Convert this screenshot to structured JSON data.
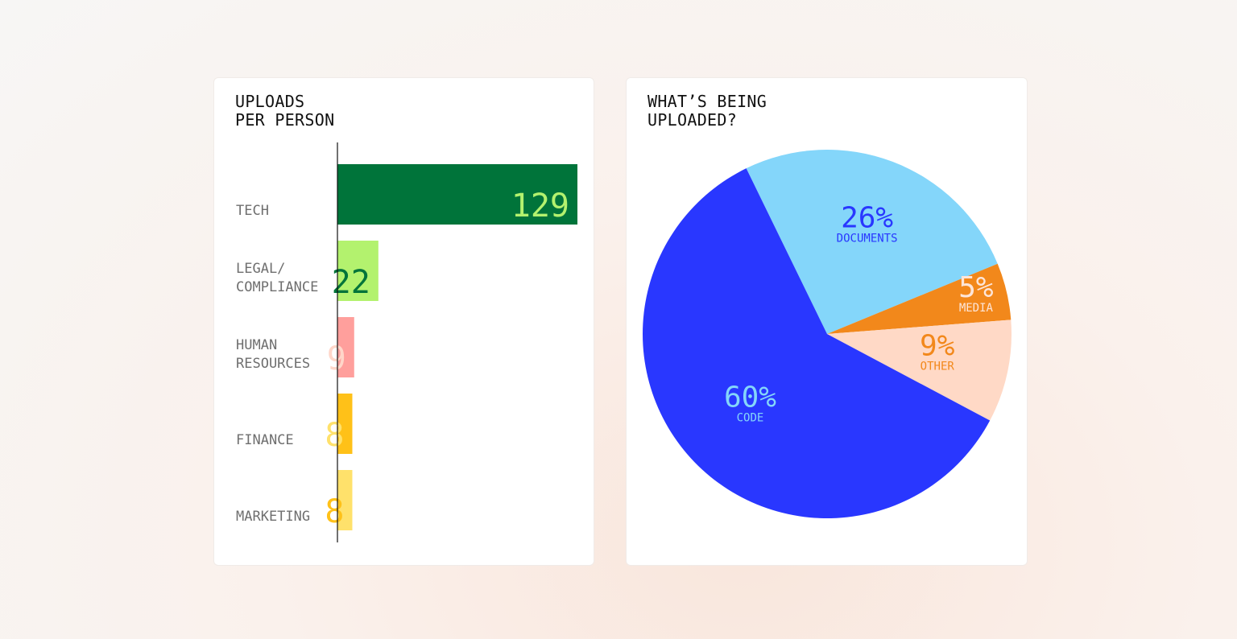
{
  "chart_data": [
    {
      "type": "bar",
      "orientation": "horizontal",
      "title_lines": [
        "UPLOADS",
        "PER PERSON"
      ],
      "categories": [
        {
          "id": "tech",
          "lines": [
            "TECH"
          ]
        },
        {
          "id": "legal-compliance",
          "lines": [
            "LEGAL/",
            "COMPLIANCE"
          ]
        },
        {
          "id": "human-resources",
          "lines": [
            "HUMAN",
            "RESOURCES"
          ]
        },
        {
          "id": "finance",
          "lines": [
            "FINANCE"
          ]
        },
        {
          "id": "marketing",
          "lines": [
            "MARKETING"
          ]
        }
      ],
      "values": [
        129,
        22,
        9,
        8,
        8
      ],
      "xlim": [
        0,
        129
      ],
      "colors": [
        "#00743a",
        "#b3f26e",
        "#ff9f9c",
        "#ffc118",
        "#ffe16b"
      ],
      "label_colors": [
        "#b3f26e",
        "#00743a",
        "#ffd6c9",
        "#ffe16b",
        "#ffc118"
      ],
      "xlabel": "",
      "ylabel": "",
      "grid": false,
      "legend": "none"
    },
    {
      "type": "pie",
      "title_lines": [
        "WHAT’S BEING",
        "UPLOADED?"
      ],
      "slices": [
        {
          "id": "documents",
          "label": "DOCUMENTS",
          "pct_text": "26%",
          "value": 26,
          "color": "#84d6fa",
          "text_color": "#2937ff"
        },
        {
          "id": "media",
          "label": "MEDIA",
          "pct_text": "5%",
          "value": 5,
          "color": "#f2881b",
          "text_color": "#fde5d8"
        },
        {
          "id": "other",
          "label": "OTHER",
          "pct_text": "9%",
          "value": 9,
          "color": "#ffd9c6",
          "text_color": "#f2881b"
        },
        {
          "id": "code",
          "label": "CODE",
          "pct_text": "60%",
          "value": 60,
          "color": "#2937ff",
          "text_color": "#84d6fa"
        }
      ],
      "legend": "none"
    }
  ]
}
